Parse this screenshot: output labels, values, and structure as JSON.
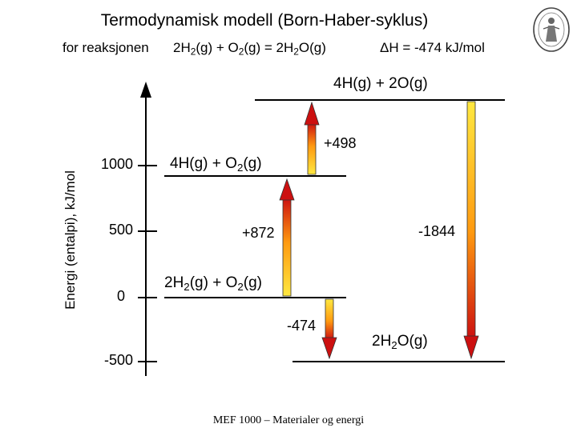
{
  "header": {
    "title": "Termodynamisk modell (Born-Haber-syklus)",
    "subtitle": "for reaksjonen",
    "reaction": "2H2(g) + O2(g) = 2H2O(g)",
    "delta_h": "ΔH = -474 kJ/mol"
  },
  "axis": {
    "label": "Energi (entalpi), kJ/mol",
    "ticks": [
      "1000",
      "500",
      "0",
      "-500"
    ]
  },
  "levels": {
    "top": "4H(g) + 2O(g)",
    "upper": "4H(g) + O2(g)",
    "reactants": "2H2(g) + O2(g)",
    "product": "2H2O(g)"
  },
  "steps": {
    "atomize_h": "+872",
    "atomize_o": "+498",
    "form_water": "-1844",
    "net": "-474"
  },
  "footer": "MEF 1000 – Materialer og energi",
  "colors": {
    "arrow_light": "#ffe840",
    "arrow_mid": "#ff9a10",
    "arrow_dark": "#cc1010"
  },
  "logo": {
    "icon": "university-seal-icon"
  }
}
